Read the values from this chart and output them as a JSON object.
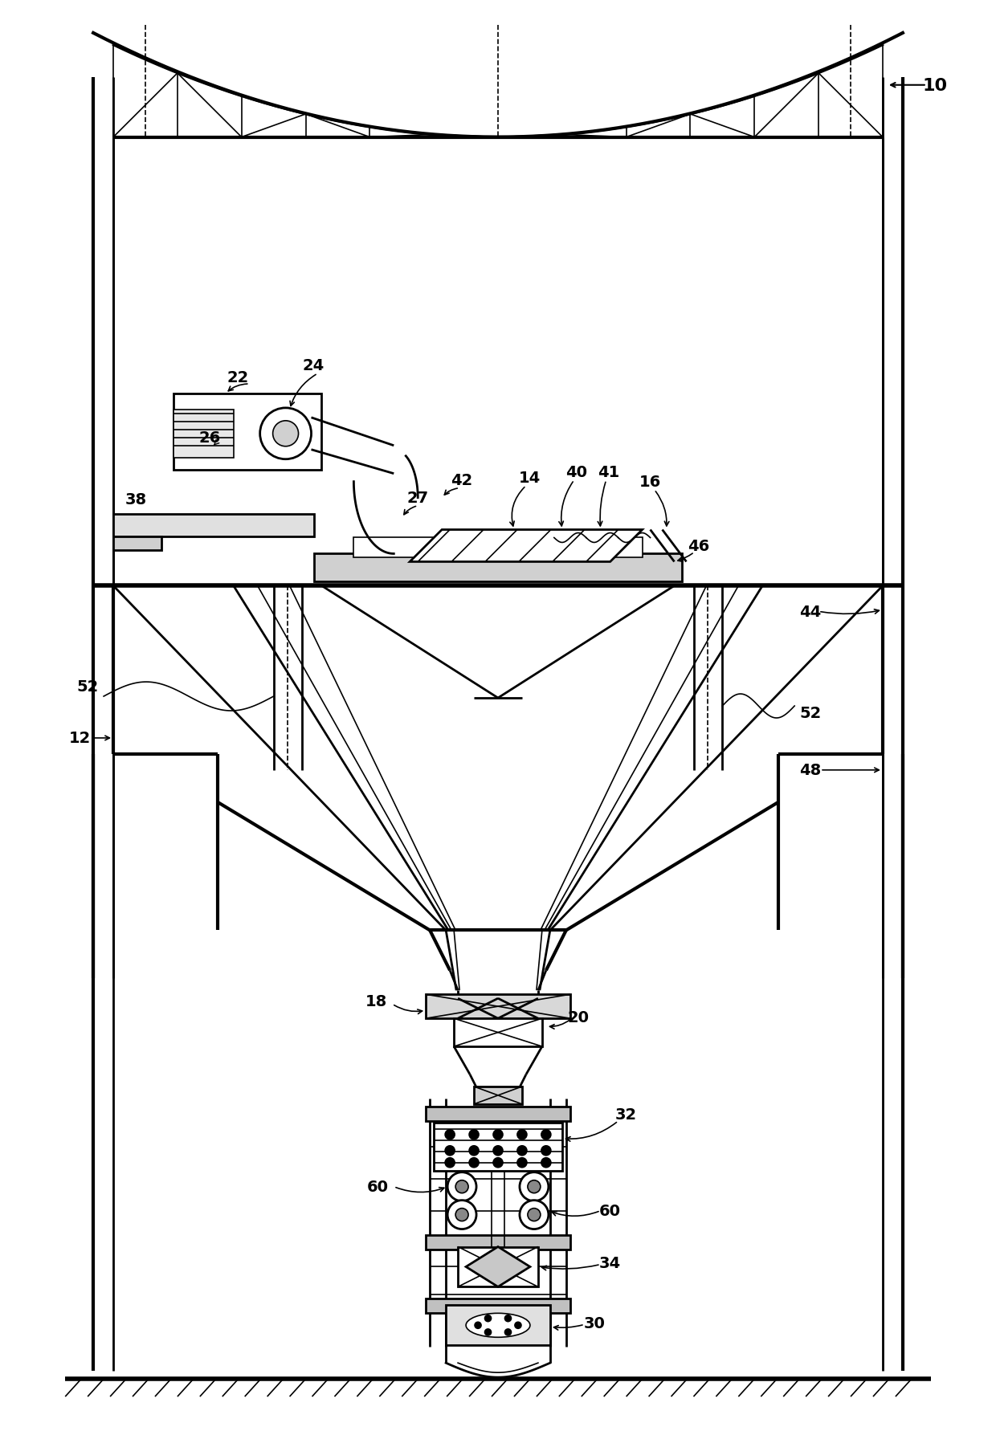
{
  "bg_color": "#ffffff",
  "line_color": "#000000",
  "fig_width": 12.4,
  "fig_height": 17.83,
  "dpi": 100
}
